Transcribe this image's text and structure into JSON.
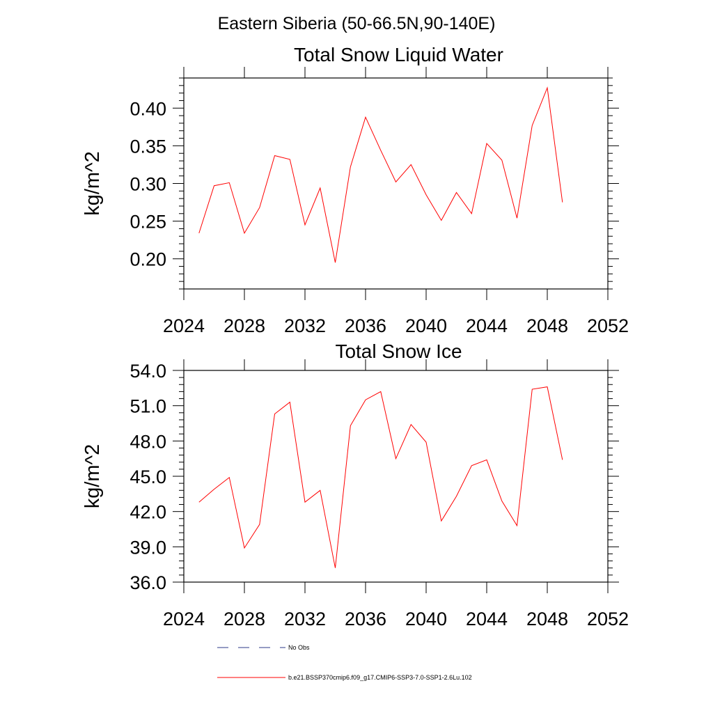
{
  "figure": {
    "suptitle": "Eastern Siberia (50-66.5N,90-140E)"
  },
  "legend": {
    "entries": [
      {
        "label": "No Obs",
        "color": "#2b3a8a",
        "dash": "dashed"
      },
      {
        "label": "b.e21.BSSP370cmip6.f09_g17.CMIP6-SSP3-7.0-SSP1-2.6Lu.102",
        "color": "#ff0000",
        "dash": "solid"
      }
    ]
  },
  "chart_data": [
    {
      "type": "line",
      "title": "Total Snow Liquid Water",
      "ylabel": "kg/m^2",
      "xlim": [
        2024,
        2052
      ],
      "ylim": [
        0.16,
        0.44
      ],
      "xticks": [
        2024,
        2028,
        2032,
        2036,
        2040,
        2044,
        2048,
        2052
      ],
      "xtick_labels": [
        "2024",
        "2028",
        "2032",
        "2036",
        "2040",
        "2044",
        "2048",
        "2052"
      ],
      "yticks": [
        0.2,
        0.25,
        0.3,
        0.35,
        0.4
      ],
      "ytick_labels": [
        "0.20",
        "0.25",
        "0.30",
        "0.35",
        "0.40"
      ],
      "series": [
        {
          "color": "#ff0000",
          "x": [
            2025,
            2026,
            2027,
            2028,
            2029,
            2030,
            2031,
            2032,
            2033,
            2034,
            2035,
            2036,
            2037,
            2038,
            2039,
            2040,
            2041,
            2042,
            2043,
            2044,
            2045,
            2046,
            2047,
            2048,
            2049
          ],
          "y": [
            0.234,
            0.297,
            0.301,
            0.234,
            0.268,
            0.337,
            0.332,
            0.245,
            0.294,
            0.195,
            0.322,
            0.388,
            0.344,
            0.302,
            0.325,
            0.285,
            0.251,
            0.288,
            0.26,
            0.353,
            0.331,
            0.254,
            0.377,
            0.427,
            0.275
          ]
        }
      ]
    },
    {
      "type": "line",
      "title": "Total Snow Ice",
      "ylabel": "kg/m^2",
      "xlim": [
        2024,
        2052
      ],
      "ylim": [
        36.0,
        54.0
      ],
      "xticks": [
        2024,
        2028,
        2032,
        2036,
        2040,
        2044,
        2048,
        2052
      ],
      "xtick_labels": [
        "2024",
        "2028",
        "2032",
        "2036",
        "2040",
        "2044",
        "2048",
        "2052"
      ],
      "yticks": [
        36,
        39,
        42,
        45,
        48,
        51,
        54
      ],
      "ytick_labels": [
        "36.0",
        "39.0",
        "42.0",
        "45.0",
        "48.0",
        "51.0",
        "54.0"
      ],
      "series": [
        {
          "color": "#ff0000",
          "x": [
            2025,
            2026,
            2027,
            2028,
            2029,
            2030,
            2031,
            2032,
            2033,
            2034,
            2035,
            2036,
            2037,
            2038,
            2039,
            2040,
            2041,
            2042,
            2043,
            2044,
            2045,
            2046,
            2047,
            2048,
            2049
          ],
          "y": [
            42.8,
            43.9,
            44.9,
            38.9,
            40.9,
            50.3,
            51.3,
            42.8,
            43.8,
            37.2,
            49.3,
            51.5,
            52.2,
            46.5,
            49.4,
            47.9,
            41.2,
            43.3,
            45.9,
            46.4,
            42.9,
            40.8,
            52.4,
            52.6,
            46.4
          ]
        }
      ]
    }
  ]
}
